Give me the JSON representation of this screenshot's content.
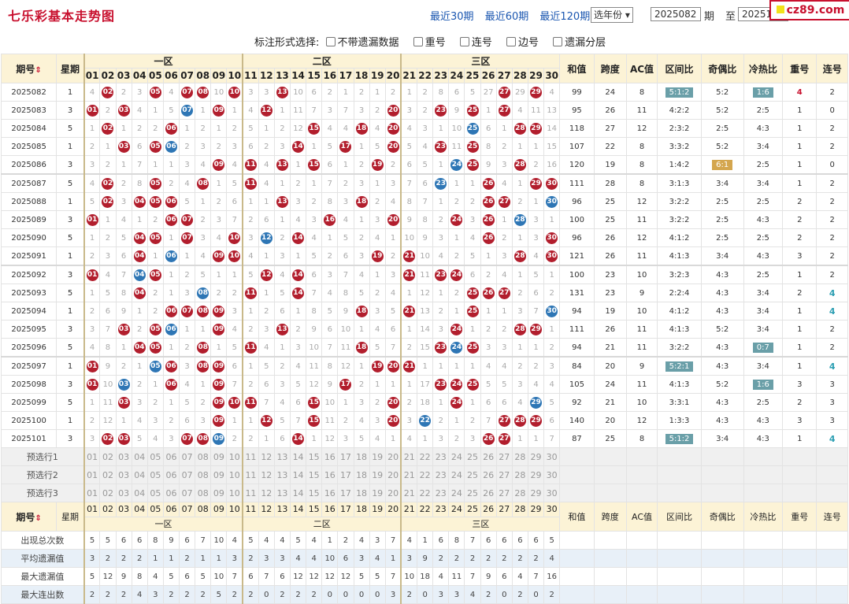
{
  "title": "七乐彩基本走势图",
  "nav": {
    "links": [
      "最近30期",
      "最近60期",
      "最近120期"
    ],
    "year_select": "选年份",
    "from_period": "2025082",
    "from_label": "期",
    "to_label": "至",
    "to_period": "2025101",
    "query": "查询"
  },
  "logo": "cz89.com",
  "options": {
    "label": "标注形式选择:",
    "items": [
      "不带遗漏数据",
      "重号",
      "连号",
      "边号",
      "遗漏分层"
    ]
  },
  "header": {
    "term": "期号",
    "week": "星期",
    "zone1": "一区",
    "zone2": "二区",
    "zone3": "三区",
    "sum": "和值",
    "span": "跨度",
    "ac": "AC值",
    "zone_ratio": "区间比",
    "odd_even": "奇偶比",
    "hot_cold": "冷热比",
    "repeat": "重号",
    "consec": "连号"
  },
  "numbers": [
    "01",
    "02",
    "03",
    "04",
    "05",
    "06",
    "07",
    "08",
    "09",
    "10",
    "11",
    "12",
    "13",
    "14",
    "15",
    "16",
    "17",
    "18",
    "19",
    "20",
    "21",
    "22",
    "23",
    "24",
    "25",
    "26",
    "27",
    "28",
    "29",
    "30"
  ],
  "rows": [
    {
      "term": "2025082",
      "week": "1",
      "sum": "99",
      "span": "24",
      "ac": "8",
      "zr": "5:1:2",
      "zr_hl": "teal",
      "oe": "5:2",
      "oe_hl": "",
      "hc": "1:6",
      "hc_hl": "teal",
      "rep": "4",
      "rep_red": true,
      "con": "2",
      "con_teal": false,
      "cells": [
        "4",
        "02",
        "2",
        "3",
        "05",
        "4",
        "07",
        "08",
        "10",
        "10",
        "3",
        "3",
        "13",
        "10",
        "6",
        "2",
        "1",
        "2",
        "1",
        "2",
        "1",
        "2",
        "8",
        "6",
        "5",
        "27",
        "3",
        "29",
        "1",
        "4"
      ],
      "hits": [
        2,
        5,
        7,
        8,
        10,
        13,
        27,
        29
      ],
      "blue": []
    },
    {
      "term": "2025083",
      "week": "3",
      "sum": "95",
      "span": "26",
      "ac": "11",
      "zr": "4:2:2",
      "oe": "5:2",
      "hc": "2:5",
      "rep": "1",
      "con": "0",
      "cells": [
        "01",
        "2",
        "03",
        "4",
        "1",
        "5",
        "07",
        "1",
        "09",
        "1",
        "4",
        "12",
        "1",
        "11",
        "7",
        "3",
        "7",
        "3",
        "2",
        "20",
        "3",
        "2",
        "23",
        "9",
        "25",
        "1",
        "27",
        "4",
        "11",
        "13"
      ],
      "hits": [
        1,
        3,
        9,
        12,
        20,
        23,
        25,
        27
      ],
      "blue": [
        7
      ]
    },
    {
      "term": "2025084",
      "week": "5",
      "sum": "118",
      "span": "27",
      "ac": "12",
      "zr": "2:3:2",
      "oe": "2:5",
      "hc": "4:3",
      "rep": "1",
      "con": "2",
      "cells": [
        "1",
        "02",
        "1",
        "2",
        "2",
        "06",
        "1",
        "2",
        "1",
        "2",
        "5",
        "1",
        "2",
        "12",
        "15",
        "4",
        "4",
        "18",
        "4",
        "20",
        "4",
        "3",
        "1",
        "10",
        "25",
        "6",
        "1",
        "28",
        "29",
        "14"
      ],
      "hits": [
        2,
        6,
        15,
        18,
        20,
        28,
        29
      ],
      "blue": [
        25
      ]
    },
    {
      "term": "2025085",
      "week": "1",
      "sum": "107",
      "span": "22",
      "ac": "8",
      "zr": "3:3:2",
      "oe": "5:2",
      "hc": "3:4",
      "rep": "1",
      "con": "2",
      "cells": [
        "2",
        "1",
        "03",
        "6",
        "05",
        "06",
        "2",
        "3",
        "2",
        "3",
        "6",
        "2",
        "3",
        "14",
        "1",
        "5",
        "17",
        "1",
        "5",
        "20",
        "5",
        "4",
        "23",
        "11",
        "25",
        "8",
        "2",
        "1",
        "1",
        "15"
      ],
      "hits": [
        3,
        5,
        14,
        17,
        20,
        23,
        25
      ],
      "blue": [
        6
      ]
    },
    {
      "term": "2025086",
      "week": "3",
      "sum": "120",
      "span": "19",
      "ac": "8",
      "zr": "1:4:2",
      "oe": "6:1",
      "oe_hl": "gold",
      "hc": "2:5",
      "rep": "1",
      "con": "0",
      "cells": [
        "3",
        "2",
        "1",
        "7",
        "1",
        "1",
        "3",
        "4",
        "09",
        "4",
        "11",
        "4",
        "13",
        "1",
        "15",
        "6",
        "1",
        "2",
        "19",
        "2",
        "6",
        "5",
        "1",
        "24",
        "25",
        "9",
        "3",
        "28",
        "2",
        "16"
      ],
      "hits": [
        9,
        11,
        13,
        15,
        19,
        25,
        28
      ],
      "blue": [
        24
      ]
    },
    {
      "term": "2025087",
      "week": "5",
      "sum": "111",
      "span": "28",
      "ac": "8",
      "zr": "3:1:3",
      "oe": "3:4",
      "hc": "3:4",
      "rep": "1",
      "con": "2",
      "cells": [
        "4",
        "02",
        "2",
        "8",
        "05",
        "2",
        "4",
        "08",
        "1",
        "5",
        "11",
        "4",
        "1",
        "2",
        "1",
        "7",
        "2",
        "3",
        "1",
        "3",
        "7",
        "6",
        "23",
        "1",
        "1",
        "26",
        "4",
        "1",
        "29",
        "30"
      ],
      "hits": [
        2,
        5,
        8,
        11,
        26,
        29,
        30
      ],
      "blue": [
        23
      ]
    },
    {
      "term": "2025088",
      "week": "1",
      "sum": "96",
      "span": "25",
      "ac": "12",
      "zr": "3:2:2",
      "oe": "2:5",
      "hc": "2:5",
      "rep": "2",
      "con": "2",
      "cells": [
        "5",
        "02",
        "3",
        "04",
        "05",
        "06",
        "5",
        "1",
        "2",
        "6",
        "1",
        "1",
        "13",
        "3",
        "2",
        "8",
        "3",
        "18",
        "2",
        "4",
        "8",
        "7",
        "1",
        "2",
        "2",
        "26",
        "27",
        "2",
        "1",
        "30"
      ],
      "hits": [
        2,
        4,
        5,
        6,
        13,
        18,
        26,
        27
      ],
      "blue": [
        30
      ]
    },
    {
      "term": "2025089",
      "week": "3",
      "sum": "100",
      "span": "25",
      "ac": "11",
      "zr": "3:2:2",
      "oe": "2:5",
      "hc": "4:3",
      "rep": "2",
      "con": "2",
      "cells": [
        "01",
        "1",
        "4",
        "1",
        "2",
        "06",
        "07",
        "2",
        "3",
        "7",
        "2",
        "6",
        "1",
        "4",
        "3",
        "16",
        "4",
        "1",
        "3",
        "20",
        "9",
        "8",
        "2",
        "24",
        "3",
        "26",
        "1",
        "28",
        "3",
        "1"
      ],
      "hits": [
        1,
        6,
        7,
        16,
        20,
        24,
        26
      ],
      "blue": [
        28
      ]
    },
    {
      "term": "2025090",
      "week": "5",
      "sum": "96",
      "span": "26",
      "ac": "12",
      "zr": "4:1:2",
      "oe": "2:5",
      "hc": "2:5",
      "rep": "2",
      "con": "2",
      "cells": [
        "1",
        "2",
        "5",
        "04",
        "05",
        "1",
        "07",
        "3",
        "4",
        "10",
        "3",
        "12",
        "2",
        "14",
        "4",
        "1",
        "5",
        "2",
        "4",
        "1",
        "10",
        "9",
        "3",
        "1",
        "4",
        "26",
        "2",
        "1",
        "3",
        "30"
      ],
      "hits": [
        4,
        5,
        7,
        10,
        14,
        26,
        30
      ],
      "blue": [
        12
      ]
    },
    {
      "term": "2025091",
      "week": "1",
      "sum": "121",
      "span": "26",
      "ac": "11",
      "zr": "4:1:3",
      "oe": "3:4",
      "hc": "4:3",
      "rep": "3",
      "con": "2",
      "cells": [
        "2",
        "3",
        "6",
        "04",
        "1",
        "06",
        "1",
        "4",
        "09",
        "10",
        "4",
        "1",
        "3",
        "1",
        "5",
        "2",
        "6",
        "3",
        "19",
        "2",
        "21",
        "10",
        "4",
        "2",
        "5",
        "1",
        "3",
        "28",
        "4",
        "30"
      ],
      "hits": [
        4,
        9,
        10,
        19,
        21,
        28,
        30
      ],
      "blue": [
        6
      ]
    },
    {
      "term": "2025092",
      "week": "3",
      "sum": "100",
      "span": "23",
      "ac": "10",
      "zr": "3:2:3",
      "oe": "4:3",
      "hc": "2:5",
      "rep": "1",
      "con": "2",
      "cells": [
        "01",
        "4",
        "7",
        "04",
        "05",
        "1",
        "2",
        "5",
        "1",
        "1",
        "5",
        "12",
        "4",
        "14",
        "6",
        "3",
        "7",
        "4",
        "1",
        "3",
        "21",
        "11",
        "23",
        "24",
        "6",
        "2",
        "4",
        "1",
        "5",
        "1"
      ],
      "hits": [
        1,
        5,
        12,
        14,
        21,
        23,
        24
      ],
      "blue": [
        4
      ]
    },
    {
      "term": "2025093",
      "week": "5",
      "sum": "131",
      "span": "23",
      "ac": "9",
      "zr": "2:2:4",
      "oe": "4:3",
      "hc": "3:4",
      "rep": "2",
      "con": "4",
      "con_teal": true,
      "cells": [
        "1",
        "5",
        "8",
        "04",
        "2",
        "1",
        "3",
        "08",
        "2",
        "2",
        "11",
        "1",
        "5",
        "14",
        "7",
        "4",
        "8",
        "5",
        "2",
        "4",
        "1",
        "12",
        "1",
        "2",
        "25",
        "26",
        "27",
        "2",
        "6",
        "2"
      ],
      "hits": [
        4,
        11,
        14,
        25,
        26,
        27
      ],
      "blue": [
        8
      ]
    },
    {
      "term": "2025094",
      "week": "1",
      "sum": "94",
      "span": "19",
      "ac": "10",
      "zr": "4:1:2",
      "oe": "4:3",
      "hc": "3:4",
      "rep": "1",
      "con": "4",
      "con_teal": true,
      "cells": [
        "2",
        "6",
        "9",
        "1",
        "2",
        "06",
        "07",
        "08",
        "09",
        "3",
        "1",
        "2",
        "6",
        "1",
        "8",
        "5",
        "9",
        "18",
        "3",
        "5",
        "21",
        "13",
        "2",
        "1",
        "25",
        "1",
        "1",
        "3",
        "7",
        "30"
      ],
      "hits": [
        6,
        7,
        8,
        9,
        18,
        21,
        25
      ],
      "blue": [
        30
      ]
    },
    {
      "term": "2025095",
      "week": "3",
      "sum": "111",
      "span": "26",
      "ac": "11",
      "zr": "4:1:3",
      "oe": "5:2",
      "hc": "3:4",
      "rep": "1",
      "con": "2",
      "cells": [
        "3",
        "7",
        "03",
        "2",
        "05",
        "06",
        "1",
        "1",
        "09",
        "4",
        "2",
        "3",
        "13",
        "2",
        "9",
        "6",
        "10",
        "1",
        "4",
        "6",
        "1",
        "14",
        "3",
        "24",
        "1",
        "2",
        "2",
        "28",
        "29",
        "1"
      ],
      "hits": [
        3,
        5,
        9,
        13,
        24,
        28,
        29
      ],
      "blue": [
        6
      ]
    },
    {
      "term": "2025096",
      "week": "5",
      "sum": "94",
      "span": "21",
      "ac": "11",
      "zr": "3:2:2",
      "oe": "4:3",
      "hc": "0:7",
      "hc_hl": "teal",
      "rep": "1",
      "con": "2",
      "cells": [
        "4",
        "8",
        "1",
        "04",
        "05",
        "1",
        "2",
        "08",
        "1",
        "5",
        "11",
        "4",
        "1",
        "3",
        "10",
        "7",
        "11",
        "18",
        "5",
        "7",
        "2",
        "15",
        "23",
        "24",
        "25",
        "3",
        "3",
        "1",
        "1",
        "2"
      ],
      "hits": [
        4,
        5,
        8,
        11,
        18,
        23,
        25
      ],
      "blue": [
        24
      ]
    },
    {
      "term": "2025097",
      "week": "1",
      "sum": "84",
      "span": "20",
      "ac": "9",
      "zr": "5:2:1",
      "zr_hl": "teal",
      "oe": "4:3",
      "hc": "3:4",
      "rep": "1",
      "con": "4",
      "con_teal": true,
      "cells": [
        "01",
        "9",
        "2",
        "1",
        "05",
        "06",
        "3",
        "08",
        "09",
        "6",
        "1",
        "5",
        "2",
        "4",
        "11",
        "8",
        "12",
        "1",
        "19",
        "20",
        "21",
        "1",
        "1",
        "1",
        "1",
        "4",
        "4",
        "2",
        "2",
        "3"
      ],
      "hits": [
        1,
        5,
        6,
        8,
        9,
        19,
        20,
        21
      ],
      "blue": [
        5
      ]
    },
    {
      "term": "2025098",
      "week": "3",
      "sum": "105",
      "span": "24",
      "ac": "11",
      "zr": "4:1:3",
      "oe": "5:2",
      "hc": "1:6",
      "hc_hl": "teal",
      "rep": "3",
      "con": "3",
      "cells": [
        "01",
        "10",
        "03",
        "2",
        "1",
        "06",
        "4",
        "1",
        "09",
        "7",
        "2",
        "6",
        "3",
        "5",
        "12",
        "9",
        "17",
        "2",
        "1",
        "1",
        "1",
        "17",
        "23",
        "24",
        "25",
        "5",
        "5",
        "3",
        "4",
        "4"
      ],
      "hits": [
        1,
        3,
        6,
        9,
        17,
        23,
        24,
        25
      ],
      "blue": [
        3
      ]
    },
    {
      "term": "2025099",
      "week": "5",
      "sum": "92",
      "span": "21",
      "ac": "10",
      "zr": "3:3:1",
      "oe": "4:3",
      "hc": "2:5",
      "rep": "2",
      "con": "3",
      "cells": [
        "1",
        "11",
        "03",
        "3",
        "2",
        "1",
        "5",
        "2",
        "09",
        "10",
        "11",
        "7",
        "4",
        "6",
        "15",
        "10",
        "1",
        "3",
        "2",
        "20",
        "2",
        "18",
        "1",
        "24",
        "1",
        "6",
        "6",
        "4",
        "29",
        "5"
      ],
      "hits": [
        3,
        9,
        10,
        11,
        15,
        20,
        24
      ],
      "blue": [
        29
      ]
    },
    {
      "term": "2025100",
      "week": "1",
      "sum": "140",
      "span": "20",
      "ac": "12",
      "zr": "1:3:3",
      "oe": "4:3",
      "hc": "4:3",
      "rep": "3",
      "con": "3",
      "cells": [
        "2",
        "12",
        "1",
        "4",
        "3",
        "2",
        "6",
        "3",
        "09",
        "1",
        "1",
        "12",
        "5",
        "7",
        "15",
        "11",
        "2",
        "4",
        "3",
        "20",
        "3",
        "22",
        "2",
        "1",
        "2",
        "7",
        "27",
        "28",
        "29",
        "6"
      ],
      "hits": [
        9,
        12,
        15,
        20,
        27,
        28,
        29
      ],
      "blue": [
        22
      ]
    },
    {
      "term": "2025101",
      "week": "3",
      "sum": "87",
      "span": "25",
      "ac": "8",
      "zr": "5:1:2",
      "zr_hl": "teal",
      "oe": "3:4",
      "hc": "4:3",
      "rep": "1",
      "con": "4",
      "con_teal": true,
      "cells": [
        "3",
        "02",
        "03",
        "5",
        "4",
        "3",
        "07",
        "08",
        "09",
        "2",
        "2",
        "1",
        "6",
        "14",
        "1",
        "12",
        "3",
        "5",
        "4",
        "1",
        "4",
        "1",
        "3",
        "2",
        "3",
        "26",
        "27",
        "1",
        "1",
        "7"
      ],
      "hits": [
        2,
        3,
        7,
        8,
        14,
        26,
        27
      ],
      "blue": [
        9
      ]
    }
  ],
  "preselect": [
    "预选行1",
    "预选行2",
    "预选行3"
  ],
  "footer": {
    "labels": [
      "出现总次数",
      "平均遗漏值",
      "最大遗漏值",
      "最大连出数"
    ],
    "values": [
      [
        "5",
        "5",
        "6",
        "6",
        "8",
        "9",
        "6",
        "7",
        "10",
        "4",
        "5",
        "4",
        "4",
        "5",
        "4",
        "1",
        "2",
        "4",
        "3",
        "7",
        "4",
        "1",
        "6",
        "8",
        "7",
        "6",
        "6",
        "6",
        "6",
        "5"
      ],
      [
        "3",
        "2",
        "2",
        "2",
        "1",
        "1",
        "2",
        "1",
        "1",
        "3",
        "2",
        "3",
        "3",
        "4",
        "4",
        "10",
        "6",
        "3",
        "4",
        "1",
        "3",
        "9",
        "2",
        "2",
        "2",
        "2",
        "2",
        "2",
        "2",
        "4"
      ],
      [
        "5",
        "12",
        "9",
        "8",
        "4",
        "5",
        "6",
        "5",
        "10",
        "7",
        "6",
        "7",
        "6",
        "12",
        "12",
        "12",
        "12",
        "5",
        "5",
        "7",
        "10",
        "18",
        "4",
        "11",
        "7",
        "9",
        "6",
        "4",
        "7",
        "16"
      ],
      [
        "2",
        "2",
        "2",
        "4",
        "3",
        "2",
        "2",
        "2",
        "5",
        "2",
        "2",
        "0",
        "2",
        "2",
        "2",
        "0",
        "0",
        "0",
        "0",
        "3",
        "2",
        "0",
        "3",
        "3",
        "4",
        "2",
        "0",
        "2",
        "0",
        "2"
      ]
    ]
  },
  "colors": {
    "accent": "#c8102e",
    "ball_red": "#b21e2d",
    "ball_blue": "#2e76b5",
    "header_bg": "#fcf3d6",
    "badge_teal": "#6a9fa8",
    "badge_gold": "#d4a64e"
  }
}
